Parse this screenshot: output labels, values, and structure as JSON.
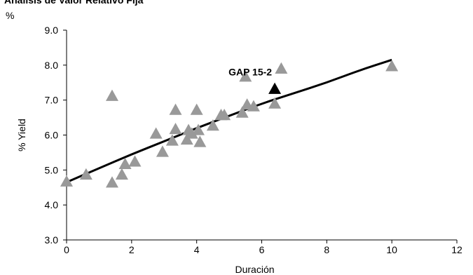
{
  "chart_data": {
    "type": "scatter",
    "title": "Análisis de Valor Relativo Fija",
    "ylabel_unit": "%",
    "xlabel": "Duración",
    "ylabel": "% Yield",
    "xlim": [
      0,
      12
    ],
    "ylim": [
      3.0,
      9.0
    ],
    "x_ticks": [
      "0",
      "2",
      "4",
      "6",
      "8",
      "10",
      "12"
    ],
    "y_ticks": [
      "3.0",
      "4.0",
      "5.0",
      "6.0",
      "7.0",
      "8.0",
      "9.0"
    ],
    "grid": false,
    "legend": "none",
    "colors": {
      "points": "#999999",
      "highlight": "#000000",
      "trend": "#000000"
    },
    "series": [
      {
        "points": [
          {
            "x": 0.0,
            "y": 4.65
          },
          {
            "x": 0.6,
            "y": 4.85
          },
          {
            "x": 1.4,
            "y": 4.62
          },
          {
            "x": 1.4,
            "y": 7.1
          },
          {
            "x": 1.7,
            "y": 4.85
          },
          {
            "x": 1.8,
            "y": 5.15
          },
          {
            "x": 2.1,
            "y": 5.22
          },
          {
            "x": 2.75,
            "y": 6.02
          },
          {
            "x": 2.95,
            "y": 5.5
          },
          {
            "x": 3.25,
            "y": 5.82
          },
          {
            "x": 3.35,
            "y": 6.7
          },
          {
            "x": 3.35,
            "y": 6.15
          },
          {
            "x": 3.7,
            "y": 5.85
          },
          {
            "x": 3.75,
            "y": 6.12
          },
          {
            "x": 3.85,
            "y": 6.02
          },
          {
            "x": 4.0,
            "y": 6.7
          },
          {
            "x": 4.05,
            "y": 6.12
          },
          {
            "x": 4.1,
            "y": 5.78
          },
          {
            "x": 4.5,
            "y": 6.25
          },
          {
            "x": 4.75,
            "y": 6.55
          },
          {
            "x": 4.85,
            "y": 6.55
          },
          {
            "x": 5.4,
            "y": 6.62
          },
          {
            "x": 5.5,
            "y": 7.65
          },
          {
            "x": 5.55,
            "y": 6.85
          },
          {
            "x": 5.75,
            "y": 6.8
          },
          {
            "x": 6.4,
            "y": 6.88
          },
          {
            "x": 6.6,
            "y": 7.88
          },
          {
            "x": 10.0,
            "y": 7.95
          }
        ]
      },
      {
        "annotation": "GAP 15-2",
        "points": [
          {
            "x": 6.4,
            "y": 7.3
          }
        ]
      }
    ],
    "trendline": {
      "type": "logarithmic-fit",
      "points": [
        {
          "x": 0.0,
          "y": 4.65
        },
        {
          "x": 1.0,
          "y": 5.05
        },
        {
          "x": 2.0,
          "y": 5.45
        },
        {
          "x": 3.0,
          "y": 5.82
        },
        {
          "x": 4.0,
          "y": 6.2
        },
        {
          "x": 5.0,
          "y": 6.55
        },
        {
          "x": 6.0,
          "y": 6.9
        },
        {
          "x": 7.0,
          "y": 7.2
        },
        {
          "x": 8.0,
          "y": 7.5
        },
        {
          "x": 9.0,
          "y": 7.85
        },
        {
          "x": 10.0,
          "y": 8.15
        }
      ]
    }
  }
}
